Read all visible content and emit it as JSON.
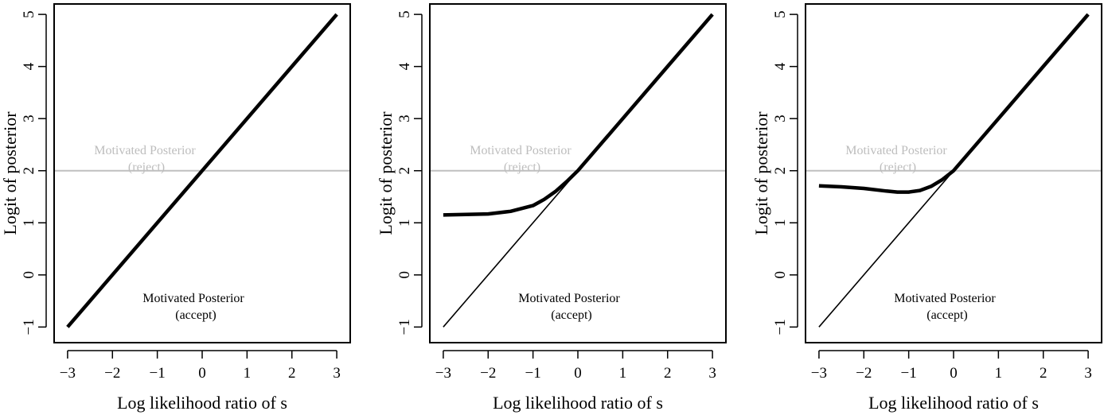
{
  "colors": {
    "axis": "#000000",
    "reference": "#bfbfbf",
    "reject_text": "#bdbdbd",
    "curve": "#000000"
  },
  "chart_data": [
    {
      "type": "line",
      "title": "",
      "xlabel": "Log likelihood ratio of s",
      "ylabel": "Logit of posterior",
      "xlim": [
        -3.3,
        3.3
      ],
      "ylim": [
        -1.3,
        5.2
      ],
      "xticks": [
        -3,
        -2,
        -1,
        0,
        1,
        2,
        3
      ],
      "xtick_labels": [
        "−3",
        "−2",
        "−1",
        "0",
        "1",
        "2",
        "3"
      ],
      "yticks": [
        -1,
        0,
        1,
        2,
        3,
        4,
        5
      ],
      "ytick_labels": [
        "−1",
        "0",
        "1",
        "2",
        "3",
        "4",
        "5"
      ],
      "threshold": 2,
      "annotations": {
        "reject_line1": "Motivated Posterior",
        "reject_line2": "(reject)",
        "accept_line1": "Motivated Posterior",
        "accept_line2": "(accept)"
      },
      "series": [
        {
          "name": "motivated posterior",
          "style": "thick",
          "x": [
            -3,
            0,
            3
          ],
          "y": [
            -1,
            2,
            5
          ]
        }
      ]
    },
    {
      "type": "line",
      "title": "",
      "xlabel": "Log likelihood ratio of s",
      "ylabel": "Logit of posterior",
      "xlim": [
        -3.3,
        3.3
      ],
      "ylim": [
        -1.3,
        5.2
      ],
      "xticks": [
        -3,
        -2,
        -1,
        0,
        1,
        2,
        3
      ],
      "xtick_labels": [
        "−3",
        "−2",
        "−1",
        "0",
        "1",
        "2",
        "3"
      ],
      "yticks": [
        -1,
        0,
        1,
        2,
        3,
        4,
        5
      ],
      "ytick_labels": [
        "−1",
        "0",
        "1",
        "2",
        "3",
        "4",
        "5"
      ],
      "threshold": 2,
      "annotations": {
        "reject_line1": "Motivated Posterior",
        "reject_line2": "(reject)",
        "accept_line1": "Motivated Posterior",
        "accept_line2": "(accept)"
      },
      "series": [
        {
          "name": "bayesian posterior",
          "style": "thin",
          "x": [
            -3,
            3
          ],
          "y": [
            -1,
            5
          ]
        },
        {
          "name": "motivated posterior",
          "style": "thick",
          "x": [
            -3,
            -2.5,
            -2,
            -1.5,
            -1,
            -0.75,
            -0.5,
            -0.25,
            0,
            1,
            2,
            3
          ],
          "y": [
            1.15,
            1.16,
            1.17,
            1.22,
            1.33,
            1.45,
            1.6,
            1.79,
            2,
            3,
            4,
            5
          ]
        }
      ]
    },
    {
      "type": "line",
      "title": "",
      "xlabel": "Log likelihood ratio of s",
      "ylabel": "Logit of posterior",
      "xlim": [
        -3.3,
        3.3
      ],
      "ylim": [
        -1.3,
        5.2
      ],
      "xticks": [
        -3,
        -2,
        -1,
        0,
        1,
        2,
        3
      ],
      "xtick_labels": [
        "−3",
        "−2",
        "−1",
        "0",
        "1",
        "2",
        "3"
      ],
      "yticks": [
        -1,
        0,
        1,
        2,
        3,
        4,
        5
      ],
      "ytick_labels": [
        "−1",
        "0",
        "1",
        "2",
        "3",
        "4",
        "5"
      ],
      "threshold": 2,
      "annotations": {
        "reject_line1": "Motivated Posterior",
        "reject_line2": "(reject)",
        "accept_line1": "Motivated Posterior",
        "accept_line2": "(accept)"
      },
      "series": [
        {
          "name": "bayesian posterior",
          "style": "thin",
          "x": [
            -3,
            3
          ],
          "y": [
            -1,
            5
          ]
        },
        {
          "name": "motivated posterior",
          "style": "thick",
          "x": [
            -3,
            -2.5,
            -2,
            -1.5,
            -1.25,
            -1,
            -0.75,
            -0.5,
            -0.25,
            0,
            1,
            2,
            3
          ],
          "y": [
            1.71,
            1.69,
            1.66,
            1.61,
            1.59,
            1.59,
            1.62,
            1.7,
            1.83,
            2,
            3,
            4,
            5
          ]
        }
      ]
    }
  ]
}
